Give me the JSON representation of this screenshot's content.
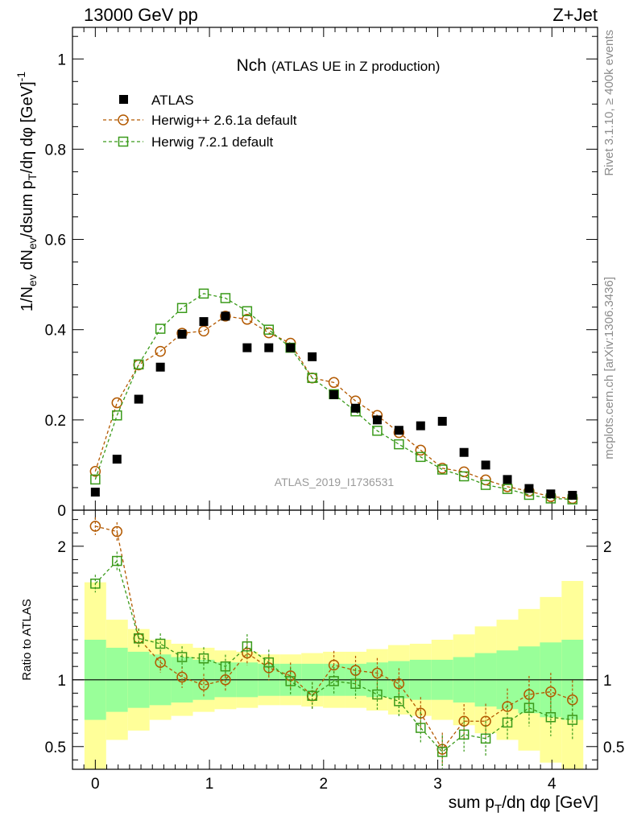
{
  "chart_data": {
    "type": "scatter",
    "header_left": "13000 GeV pp",
    "header_right": "Z+Jet",
    "title": "Nch",
    "subtitle": "(ATLAS UE in Z production)",
    "ylabel_main": "1/N_ev dN_ev/dsum p_T/dη dφ  [GeV]^-1",
    "ylabel_ratio": "Ratio to ATLAS",
    "xlabel": "sum p_T/dη dφ [GeV]",
    "side_label_top": "Rivet 3.1.10, ≥ 400k events",
    "side_label_bottom": "mcplots.cern.ch [arXiv:1306.3436]",
    "analysis_id": "ATLAS_2019_I1736531",
    "xlim": [
      -0.2,
      4.4
    ],
    "ylim_main": [
      0,
      1.07
    ],
    "ylim_ratio": [
      0.33,
      2.27
    ],
    "x_ticks": [
      "0",
      "1",
      "2",
      "3",
      "4"
    ],
    "y_ticks_main": [
      "0",
      "0.2",
      "0.4",
      "0.6",
      "0.8",
      "1"
    ],
    "y_ticks_ratio": [
      "0.5",
      "1",
      "2"
    ],
    "x": [
      0.0,
      0.19,
      0.38,
      0.57,
      0.76,
      0.95,
      1.14,
      1.33,
      1.52,
      1.71,
      1.9,
      2.09,
      2.28,
      2.47,
      2.66,
      2.85,
      3.04,
      3.23,
      3.42,
      3.61,
      3.8,
      3.99,
      4.18
    ],
    "series": [
      {
        "name": "ATLAS",
        "marker": "filled-square",
        "color": "#000000",
        "values": [
          0.04,
          0.113,
          0.246,
          0.317,
          0.39,
          0.418,
          0.43,
          0.36,
          0.36,
          0.36,
          0.34,
          0.256,
          0.226,
          0.2,
          0.177,
          0.187,
          0.197,
          0.128,
          0.1,
          0.068,
          0.048,
          0.036,
          0.033
        ],
        "band_inner": [
          0.3,
          0.24,
          0.21,
          0.19,
          0.17,
          0.15,
          0.13,
          0.13,
          0.12,
          0.12,
          0.12,
          0.12,
          0.12,
          0.13,
          0.14,
          0.15,
          0.15,
          0.17,
          0.2,
          0.22,
          0.25,
          0.28,
          0.3
        ],
        "band_outer": [
          0.73,
          0.45,
          0.38,
          0.3,
          0.27,
          0.24,
          0.22,
          0.21,
          0.19,
          0.19,
          0.2,
          0.21,
          0.21,
          0.23,
          0.26,
          0.27,
          0.3,
          0.34,
          0.4,
          0.45,
          0.53,
          0.62,
          0.74
        ]
      },
      {
        "name": "Herwig++ 2.6.1a default",
        "marker": "open-circle",
        "color": "#b35900",
        "values": [
          0.086,
          0.238,
          0.322,
          0.352,
          0.392,
          0.397,
          0.43,
          0.423,
          0.393,
          0.37,
          0.293,
          0.283,
          0.242,
          0.21,
          0.172,
          0.133,
          0.093,
          0.085,
          0.067,
          0.052,
          0.042,
          0.03,
          0.026
        ],
        "ratio": [
          2.15,
          2.11,
          1.31,
          1.13,
          1.02,
          0.96,
          1.0,
          1.2,
          1.09,
          1.03,
          0.88,
          1.11,
          1.07,
          1.05,
          0.97,
          0.75,
          0.48,
          0.69,
          0.69,
          0.8,
          0.89,
          0.91,
          0.85
        ]
      },
      {
        "name": "Herwig 7.2.1 default",
        "marker": "open-square",
        "color": "#3a9a1a",
        "values": [
          0.068,
          0.21,
          0.323,
          0.402,
          0.448,
          0.48,
          0.47,
          0.441,
          0.4,
          0.36,
          0.293,
          0.257,
          0.219,
          0.176,
          0.146,
          0.118,
          0.09,
          0.075,
          0.056,
          0.047,
          0.034,
          0.026,
          0.024
        ],
        "ratio": [
          1.72,
          1.89,
          1.31,
          1.27,
          1.17,
          1.16,
          1.1,
          1.25,
          1.13,
          0.99,
          0.88,
          0.99,
          0.97,
          0.89,
          0.84,
          0.64,
          0.46,
          0.59,
          0.56,
          0.68,
          0.79,
          0.72,
          0.7
        ]
      }
    ],
    "colors": {
      "band_inner": "#99ff99",
      "band_outer": "#ffff99"
    }
  }
}
